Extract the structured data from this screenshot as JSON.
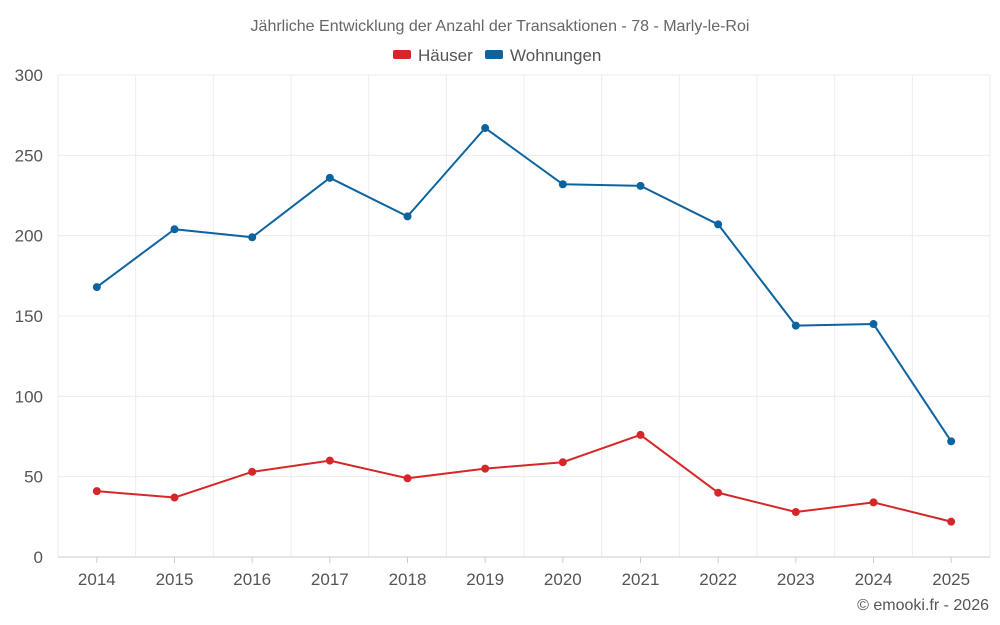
{
  "chart_data": {
    "type": "line",
    "title": "Jährliche Entwicklung der Anzahl der Transaktionen - 78 - Marly-le-Roi",
    "categories": [
      "2014",
      "2015",
      "2016",
      "2017",
      "2018",
      "2019",
      "2020",
      "2021",
      "2022",
      "2023",
      "2024",
      "2025"
    ],
    "series": [
      {
        "name": "Häuser",
        "color": "#d62728",
        "values": [
          41,
          37,
          53,
          60,
          49,
          55,
          59,
          76,
          40,
          28,
          34,
          22
        ]
      },
      {
        "name": "Wohnungen",
        "color": "#0b64a0",
        "values": [
          168,
          204,
          199,
          236,
          212,
          267,
          232,
          231,
          207,
          144,
          145,
          72
        ]
      }
    ],
    "ylim": [
      0,
      300
    ],
    "yticks": [
      "0",
      "50",
      "100",
      "150",
      "200",
      "250",
      "300"
    ],
    "legend_position": "top-center",
    "grid": true
  },
  "credit": "© emooki.fr - 2026"
}
